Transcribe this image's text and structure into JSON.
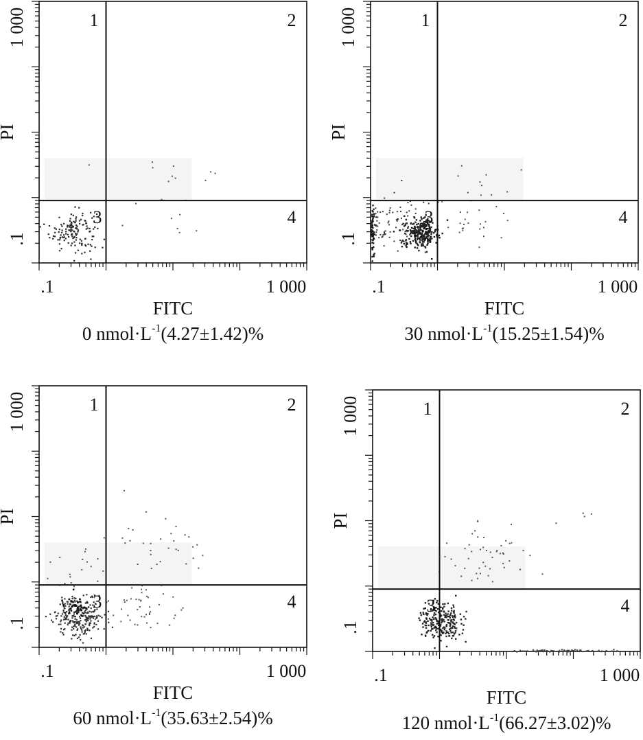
{
  "figure": {
    "description_free": true
  },
  "chart_data": [
    {
      "type": "scatter",
      "id": "panel-0",
      "xlabel": "FITC",
      "ylabel": "PI",
      "x_ticks": [
        ".1",
        "1 000"
      ],
      "y_ticks": [
        ".1",
        "1 000"
      ],
      "xlim": [
        0.1,
        1000
      ],
      "ylim": [
        0.1,
        1000
      ],
      "x_scale": "log",
      "y_scale": "log",
      "gate": {
        "x": 1.0,
        "y": 0.9
      },
      "quadrant_labels": [
        "1",
        "2",
        "3",
        "4"
      ],
      "caption": {
        "dose": "0 nmol·L",
        "exponent": "-1",
        "result": "(4.27±1.42)%"
      },
      "clusters": [
        {
          "quadrant": "3",
          "cx": 0.32,
          "cy": 0.32,
          "spread_x": 1.5,
          "spread_y": 1.45,
          "count": 150,
          "color": "#2a2a2a",
          "size": 2.2
        },
        {
          "quadrant": "4",
          "cx": 8.0,
          "cy": 0.4,
          "spread_x": 2.5,
          "spread_y": 1.6,
          "count": 9,
          "color": "#555555",
          "size": 2.0
        },
        {
          "quadrant": "2",
          "cx": 10.0,
          "cy": 2.5,
          "spread_x": 2.2,
          "spread_y": 1.3,
          "count": 9,
          "color": "#555555",
          "size": 2.0
        },
        {
          "quadrant": "1",
          "cx": 0.5,
          "cy": 3.0,
          "spread_x": 1.1,
          "spread_y": 1.1,
          "count": 1,
          "color": "#555555",
          "size": 2.0
        }
      ]
    },
    {
      "type": "scatter",
      "id": "panel-30",
      "xlabel": "FITC",
      "ylabel": "PI",
      "x_ticks": [
        ".1",
        "1 000"
      ],
      "y_ticks": [
        ".1",
        "1 000"
      ],
      "xlim": [
        0.1,
        1000
      ],
      "ylim": [
        0.1,
        1000
      ],
      "x_scale": "log",
      "y_scale": "log",
      "gate": {
        "x": 1.0,
        "y": 0.9
      },
      "quadrant_labels": [
        "1",
        "2",
        "3",
        "4"
      ],
      "caption": {
        "dose": "30 nmol·L",
        "exponent": "-1",
        "result": "(15.25±1.54)%"
      },
      "clusters": [
        {
          "quadrant": "3",
          "cx": 0.55,
          "cy": 0.3,
          "spread_x": 1.35,
          "spread_y": 1.3,
          "count": 260,
          "color": "#1e1e1e",
          "size": 2.4
        },
        {
          "quadrant": "3",
          "cx": 0.2,
          "cy": 0.4,
          "spread_x": 1.8,
          "spread_y": 1.6,
          "count": 90,
          "color": "#3a3a3a",
          "size": 2.0
        },
        {
          "quadrant": "3",
          "cx": 0.105,
          "cy": 0.3,
          "spread_x": 1.03,
          "spread_y": 1.6,
          "count": 50,
          "color": "#1a1a1a",
          "size": 2.4
        },
        {
          "quadrant": "4",
          "cx": 3.5,
          "cy": 0.45,
          "spread_x": 2.3,
          "spread_y": 1.5,
          "count": 26,
          "color": "#555555",
          "size": 2.0
        },
        {
          "quadrant": "2",
          "cx": 6.0,
          "cy": 1.5,
          "spread_x": 2.0,
          "spread_y": 1.4,
          "count": 10,
          "color": "#555555",
          "size": 2.0
        }
      ]
    },
    {
      "type": "scatter",
      "id": "panel-60",
      "xlabel": "FITC",
      "ylabel": "PI",
      "x_ticks": [
        ".1",
        "1 000"
      ],
      "y_ticks": [
        ".1",
        "1 000"
      ],
      "xlim": [
        0.1,
        1000
      ],
      "ylim": [
        0.1,
        1000
      ],
      "x_scale": "log",
      "y_scale": "log",
      "gate": {
        "x": 1.0,
        "y": 0.9
      },
      "quadrant_labels": [
        "1",
        "2",
        "3",
        "4"
      ],
      "caption": {
        "dose": "60 nmol·L",
        "exponent": "-1",
        "result": "(35.63±2.54)%"
      },
      "clusters": [
        {
          "quadrant": "3",
          "cx": 0.4,
          "cy": 0.3,
          "spread_x": 1.55,
          "spread_y": 1.45,
          "count": 240,
          "color": "#333333",
          "size": 2.2
        },
        {
          "quadrant": "3",
          "cx": 0.35,
          "cy": 0.42,
          "spread_x": 1.2,
          "spread_y": 1.2,
          "count": 40,
          "color": "#111111",
          "size": 2.6
        },
        {
          "quadrant": "4",
          "cx": 3.5,
          "cy": 0.4,
          "spread_x": 2.2,
          "spread_y": 1.5,
          "count": 45,
          "color": "#555555",
          "size": 2.0
        },
        {
          "quadrant": "2",
          "cx": 6.0,
          "cy": 3.5,
          "spread_x": 2.6,
          "spread_y": 2.2,
          "count": 35,
          "color": "#555555",
          "size": 2.0
        },
        {
          "quadrant": "1",
          "cx": 0.4,
          "cy": 1.8,
          "spread_x": 1.6,
          "spread_y": 1.5,
          "count": 18,
          "color": "#555555",
          "size": 2.0
        }
      ]
    },
    {
      "type": "scatter",
      "id": "panel-120",
      "xlabel": "FITC",
      "ylabel": "PI",
      "x_ticks": [
        ".1",
        "1 000"
      ],
      "y_ticks": [
        ".1",
        "1 000"
      ],
      "xlim": [
        0.1,
        1000
      ],
      "ylim": [
        0.1,
        1000
      ],
      "x_scale": "log",
      "y_scale": "log",
      "gate": {
        "x": 1.0,
        "y": 0.9
      },
      "quadrant_labels": [
        "1",
        "2",
        "3",
        "4"
      ],
      "caption": {
        "dose": "120 nmol·L",
        "exponent": "-1",
        "result": "(66.27±3.02)%"
      },
      "clusters": [
        {
          "quadrant": "3",
          "cx": 0.85,
          "cy": 0.3,
          "spread_x": 1.3,
          "spread_y": 1.45,
          "count": 140,
          "color": "#222222",
          "size": 2.4
        },
        {
          "quadrant": "4",
          "cx": 1.5,
          "cy": 0.3,
          "spread_x": 1.25,
          "spread_y": 1.4,
          "count": 90,
          "color": "#2a2a2a",
          "size": 2.4
        },
        {
          "quadrant": "4",
          "cx": 60.0,
          "cy": 0.105,
          "spread_x": 2.8,
          "spread_y": 1.02,
          "count": 70,
          "color": "#444444",
          "size": 2.2
        },
        {
          "quadrant": "2",
          "cx": 5.0,
          "cy": 3.0,
          "spread_x": 2.1,
          "spread_y": 1.8,
          "count": 50,
          "color": "#555555",
          "size": 2.0
        },
        {
          "quadrant": "2",
          "cx": 100.0,
          "cy": 10.0,
          "spread_x": 1.6,
          "spread_y": 1.4,
          "count": 4,
          "color": "#555555",
          "size": 2.0
        }
      ]
    }
  ]
}
